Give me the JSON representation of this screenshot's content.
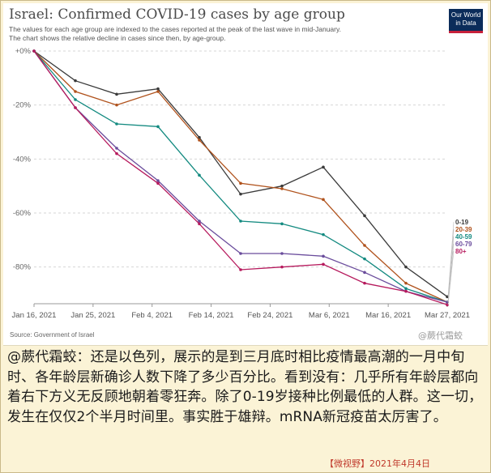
{
  "chart_data": {
    "type": "line",
    "title": "Israel: Confirmed COVID-19 cases by age group",
    "subtitle": [
      "The values for each age group are indexed to the cases reported at the peak of the last wave in mid-January.",
      "The chart shows the relative decline in cases since then, by age-group."
    ],
    "x_ticks": [
      "Jan 16, 2021",
      "Jan 25, 2021",
      "Feb 4, 2021",
      "Feb 14, 2021",
      "Feb 24, 2021",
      "Mar 6, 2021",
      "Mar 16, 2021",
      "Mar 27, 2021"
    ],
    "y_ticks": [
      "+0%",
      "-20%",
      "-40%",
      "-60%",
      "-80%"
    ],
    "y_tick_values": [
      0,
      -20,
      -40,
      -60,
      -80
    ],
    "ylim": [
      -93,
      0
    ],
    "x": [
      "2021-01-16",
      "2021-01-23",
      "2021-01-30",
      "2021-02-06",
      "2021-02-13",
      "2021-02-20",
      "2021-02-27",
      "2021-03-06",
      "2021-03-13",
      "2021-03-20",
      "2021-03-27"
    ],
    "series": [
      {
        "name": "0-19",
        "color": "#3a3a3a",
        "values": [
          0,
          -11,
          -16,
          -14,
          -32,
          -53,
          -50,
          -43,
          -61,
          -80,
          -91
        ]
      },
      {
        "name": "20-39",
        "color": "#b0521c",
        "values": [
          0,
          -15,
          -20,
          -15,
          -33,
          -49,
          -51,
          -55,
          -72,
          -86,
          -93
        ]
      },
      {
        "name": "40-59",
        "color": "#138a80",
        "values": [
          0,
          -18,
          -27,
          -28,
          -46,
          -63,
          -64,
          -68,
          -77,
          -88,
          -93
        ]
      },
      {
        "name": "60-79",
        "color": "#6a4c9c",
        "values": [
          0,
          -21,
          -36,
          -48,
          -63,
          -75,
          -75,
          -76,
          -82,
          -89,
          -93
        ]
      },
      {
        "name": "80+",
        "color": "#b61a5d",
        "values": [
          0,
          -21,
          -38,
          -49,
          -64,
          -81,
          -80,
          -79,
          -86,
          -89,
          -94
        ]
      }
    ],
    "grid": true,
    "legend": "right-end"
  },
  "branding": {
    "logo_line1": "Our World",
    "logo_line2": "in Data"
  },
  "source": "Source: Government of Israel",
  "watermark": "@蕨代霜蛟",
  "caption": {
    "author": "@蕨代霜蛟",
    "text": "：还是以色列，展示的是到三月底时相比疫情最高潮的一月中旬时、各年龄层新确诊人数下降了多少百分比。看到没有：几乎所有年龄层都向着右下方义无反顾地朝着零狂奔。除了0-19岁接种比例最低的人群。这一切，发生在仅仅2个半月时间里。事实胜于雄辩。mRNA新冠疫苗太厉害了。"
  },
  "credit": "【微视野】2021年4月4日"
}
